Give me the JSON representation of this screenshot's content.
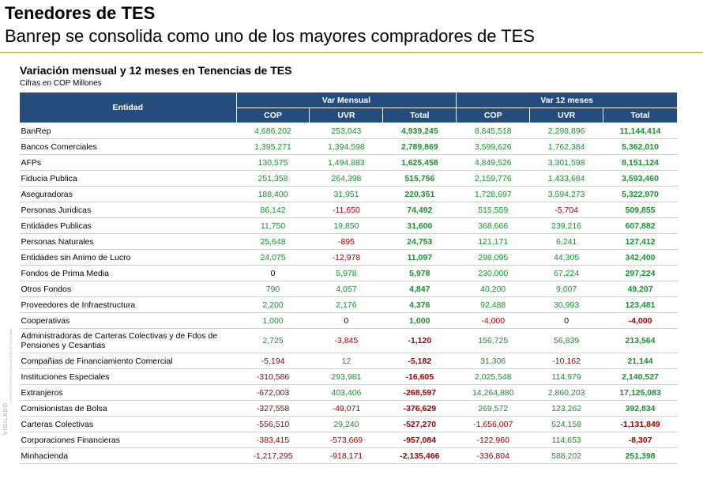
{
  "header": {
    "title": "Tenedores de TES",
    "subtitle": "Banrep se consolida como uno de los mayores compradores de TES"
  },
  "side": {
    "brand": "VIGILADO",
    "small": "SUPERINTENDENCIA FINANCIERA DE COLOMBIA"
  },
  "colors": {
    "positive": "#1a8f2e",
    "negative": "#a00000",
    "header_bg": "#244d7d",
    "rule": "#a7b84a"
  },
  "table": {
    "title": "Variación  mensual  y 12 meses en Tenencias de TES",
    "subtitle": "Cifras en COP Millones",
    "group_headers": {
      "entity": "Entidad",
      "monthly": "Var Mensual",
      "yearly": "Var 12 meses"
    },
    "sub_headers": [
      "COP",
      "UVR",
      "Total",
      "COP",
      "UVR",
      "Total"
    ],
    "rows": [
      {
        "entity": "BanRep",
        "values": [
          "4,686,202",
          "253,043",
          "4,939,245",
          "8,845,518",
          "2,298,896",
          "11,144,414"
        ]
      },
      {
        "entity": "Bancos Comerciales",
        "values": [
          "1,395,271",
          "1,394,598",
          "2,789,869",
          "3,599,626",
          "1,762,384",
          "5,362,010"
        ]
      },
      {
        "entity": "AFPs",
        "values": [
          "130,575",
          "1,494,883",
          "1,625,458",
          "4,849,526",
          "3,301,598",
          "8,151,124"
        ]
      },
      {
        "entity": "Fiducia Publica",
        "values": [
          "251,358",
          "264,398",
          "515,756",
          "2,159,776",
          "1,433,684",
          "3,593,460"
        ]
      },
      {
        "entity": "Aseguradoras",
        "values": [
          "188,400",
          "31,951",
          "220,351",
          "1,728,697",
          "3,594,273",
          "5,322,970"
        ]
      },
      {
        "entity": "Personas  Juridicas",
        "values": [
          "86,142",
          "-11,650",
          "74,492",
          "515,559",
          "-5,704",
          "509,855"
        ]
      },
      {
        "entity": "Entidades  Publicas",
        "values": [
          "11,750",
          "19,850",
          "31,600",
          "368,666",
          "239,216",
          "607,882"
        ]
      },
      {
        "entity": "Personas  Naturales",
        "values": [
          "25,648",
          "-895",
          "24,753",
          "121,171",
          "6,241",
          "127,412"
        ]
      },
      {
        "entity": "Entidades  sin Animo de Lucro",
        "values": [
          "24,075",
          "-12,978",
          "11,097",
          "298,095",
          "44,305",
          "342,400"
        ]
      },
      {
        "entity": "Fondos de Prima  Media",
        "values": [
          "0",
          "5,978",
          "5,978",
          "230,000",
          "67,224",
          "297,224"
        ]
      },
      {
        "entity": "Otros Fondos",
        "values": [
          "790",
          "4,057",
          "4,847",
          "40,200",
          "9,007",
          "49,207"
        ]
      },
      {
        "entity": "Proveedores  de Infraestructura",
        "values": [
          "2,200",
          "2,176",
          "4,376",
          "92,488",
          "30,993",
          "123,481"
        ]
      },
      {
        "entity": "Cooperativas",
        "values": [
          "1,000",
          "0",
          "1,000",
          "-4,000",
          "0",
          "-4,000"
        ]
      },
      {
        "entity": "Administradoras  de Carteras  Colectivas  y de Fdos de Pensiones  y Cesantias",
        "values": [
          "2,725",
          "-3,845",
          "-1,120",
          "156,725",
          "56,839",
          "213,564"
        ]
      },
      {
        "entity": "Compañias   de Financiamiento   Comercial",
        "values": [
          "-5,194",
          "12",
          "-5,182",
          "31,306",
          "-10,162",
          "21,144"
        ]
      },
      {
        "entity": "Instituciones  Especiales",
        "values": [
          "-310,586",
          "293,981",
          "-16,605",
          "2,025,548",
          "114,979",
          "2,140,527"
        ]
      },
      {
        "entity": "Extranjeros",
        "values": [
          "-672,003",
          "403,406",
          "-268,597",
          "14,264,880",
          "2,860,203",
          "17,125,083"
        ]
      },
      {
        "entity": "Comisionistas  de Bolsa",
        "values": [
          "-327,558",
          "-49,071",
          "-376,629",
          "269,572",
          "123,262",
          "392,834"
        ]
      },
      {
        "entity": "Carteras  Colectivas",
        "values": [
          "-556,510",
          "29,240",
          "-527,270",
          "-1,656,007",
          "524,158",
          "-1,131,849"
        ]
      },
      {
        "entity": "Corporaciones  Financieras",
        "values": [
          "-383,415",
          "-573,669",
          "-957,084",
          "-122,960",
          "114,653",
          "-8,307"
        ]
      },
      {
        "entity": "Minhacienda",
        "values": [
          "-1,217,295",
          "-918,171",
          "-2,135,466",
          "-336,804",
          "588,202",
          "251,398"
        ]
      }
    ]
  }
}
